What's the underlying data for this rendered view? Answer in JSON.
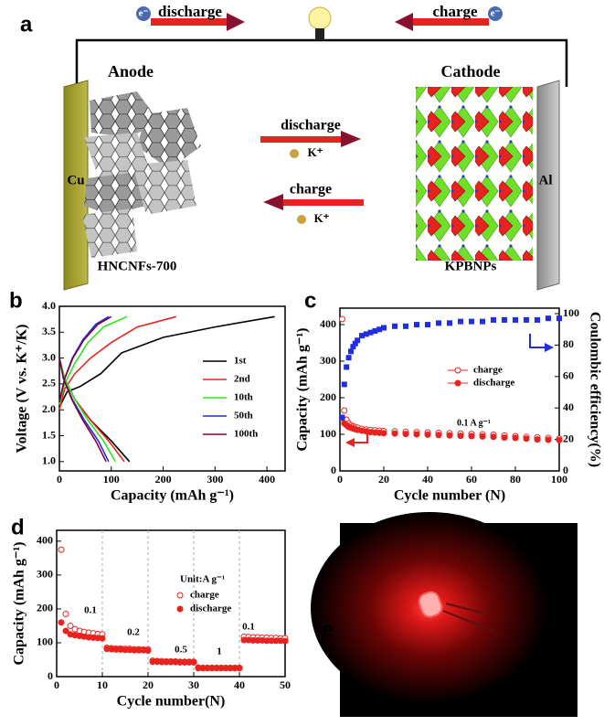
{
  "panel_labels": [
    "a",
    "b",
    "c",
    "d",
    "e"
  ],
  "diagram": {
    "top_discharge": "discharge",
    "top_charge": "charge",
    "electron": "e⁻",
    "anode": "Anode",
    "cathode": "Cathode",
    "anode_collector": "Cu",
    "cathode_collector": "Al",
    "anode_material": "HNCNFs-700",
    "cathode_material": "KPBNPs",
    "middle_discharge": "discharge",
    "middle_charge": "charge",
    "ion": "K⁺"
  },
  "chart_data": [
    {
      "type": "line",
      "xlabel": "Capacity (mAh g⁻¹)",
      "ylabel": "Voltage (V vs. K⁺/K)",
      "xlim": [
        0,
        435
      ],
      "ylim": [
        0.82,
        4.0
      ],
      "xticks": [
        0,
        100,
        200,
        300,
        400
      ],
      "yticks": [
        {
          "value": 1,
          "label": "1.0"
        },
        1.5,
        {
          "value": 2,
          "label": "2.0"
        },
        2.5,
        {
          "value": 3,
          "label": "3.0"
        },
        3.5,
        {
          "value": 4,
          "label": "4.0"
        }
      ],
      "series": [
        {
          "name": "1st",
          "color": "#000000",
          "x": [
            0,
            10,
            30,
            60,
            100,
            135,
            null,
            0,
            15,
            40,
            80,
            120,
            200,
            300,
            415
          ],
          "values": [
            3.0,
            2.6,
            2.2,
            1.8,
            1.4,
            1.0,
            null,
            2.05,
            2.35,
            2.45,
            2.7,
            3.1,
            3.4,
            3.6,
            3.8
          ]
        },
        {
          "name": "2nd",
          "color": "#e8231f",
          "x": [
            0,
            10,
            30,
            60,
            95,
            125,
            null,
            0,
            10,
            30,
            60,
            100,
            150,
            225
          ],
          "values": [
            3.0,
            2.6,
            2.2,
            1.8,
            1.4,
            1.0,
            null,
            2.0,
            2.4,
            2.7,
            3.0,
            3.3,
            3.6,
            3.8
          ]
        },
        {
          "name": "10th",
          "color": "#2ee61a",
          "x": [
            0,
            10,
            30,
            55,
            85,
            108,
            null,
            0,
            10,
            30,
            55,
            85,
            130
          ],
          "values": [
            3.0,
            2.6,
            2.2,
            1.8,
            1.4,
            1.0,
            null,
            2.1,
            2.5,
            2.9,
            3.3,
            3.6,
            3.8
          ]
        },
        {
          "name": "50th",
          "color": "#1f2ee0",
          "x": [
            0,
            8,
            25,
            48,
            75,
            95,
            null,
            0,
            10,
            25,
            45,
            70,
            95
          ],
          "values": [
            3.0,
            2.6,
            2.2,
            1.8,
            1.4,
            1.0,
            null,
            2.15,
            2.6,
            3.0,
            3.35,
            3.65,
            3.8
          ]
        },
        {
          "name": "100th",
          "color": "#800040",
          "x": [
            0,
            8,
            24,
            45,
            70,
            90,
            null,
            0,
            10,
            26,
            47,
            74,
            100
          ],
          "values": [
            3.0,
            2.6,
            2.2,
            1.8,
            1.4,
            1.0,
            null,
            2.15,
            2.6,
            3.0,
            3.35,
            3.65,
            3.8
          ]
        }
      ]
    },
    {
      "type": "scatter",
      "xlabel": "Cycle number (N)",
      "ylabel": "Capacity (mAh g⁻¹)",
      "y2label": "Coulombic efficiency(%)",
      "annotations": [
        "0.1 A g⁻¹"
      ],
      "xlim": [
        0,
        100
      ],
      "ylim": [
        0,
        445
      ],
      "y2lim": [
        0,
        103.5
      ],
      "xticks": [
        0,
        20,
        40,
        60,
        80,
        100
      ],
      "yticks": [
        0,
        100,
        200,
        300,
        400
      ],
      "y2ticks": [
        0,
        20,
        40,
        60,
        80,
        100
      ],
      "x": [
        1,
        2,
        3,
        4,
        5,
        6,
        7,
        8,
        10,
        12,
        14,
        16,
        18,
        20,
        25,
        30,
        35,
        40,
        45,
        50,
        55,
        60,
        65,
        70,
        75,
        80,
        85,
        90,
        95,
        100
      ],
      "series": [
        {
          "name": "charge",
          "color": "#e8231f",
          "marker": "open-circle",
          "values": [
            415,
            165,
            140,
            130,
            125,
            122,
            120,
            118,
            115,
            113,
            112,
            111,
            110,
            109,
            108,
            107,
            106,
            105,
            104,
            103,
            102,
            101,
            100,
            99,
            97,
            95,
            93,
            92,
            90,
            88
          ]
        },
        {
          "name": "discharge",
          "color": "#e8231f",
          "marker": "filled-circle",
          "values": [
            145,
            130,
            125,
            120,
            118,
            116,
            114,
            112,
            110,
            108,
            106,
            105,
            104,
            103,
            102,
            101,
            100,
            99,
            98,
            97,
            96,
            95,
            94,
            93,
            91,
            90,
            88,
            86,
            85,
            84
          ]
        },
        {
          "name": "Coulombic efficiency",
          "color": "#1f2ee0",
          "marker": "square",
          "axis": "y2",
          "values": [
            34,
            55,
            66,
            72,
            76,
            79,
            81,
            83,
            86,
            87,
            88,
            89,
            90,
            91,
            92,
            92,
            93,
            93,
            94,
            94,
            95,
            95,
            95,
            96,
            96,
            96,
            96,
            96,
            97,
            97
          ]
        }
      ]
    },
    {
      "type": "scatter",
      "xlabel": "Cycle number(N)",
      "ylabel": "Capacity (mAh g⁻¹)",
      "legend_title": "Unit:A g⁻¹",
      "annotations": [
        "0.1",
        "0.2",
        "0.5",
        "1",
        "0.1"
      ],
      "dividers": [
        10,
        20,
        30,
        40
      ],
      "xlim": [
        0,
        50
      ],
      "ylim": [
        0,
        432
      ],
      "xticks": [
        0,
        10,
        20,
        30,
        40,
        50
      ],
      "yticks": [
        0,
        100,
        200,
        300,
        400
      ],
      "x": [
        1,
        2,
        3,
        4,
        5,
        6,
        7,
        8,
        9,
        10,
        11,
        12,
        13,
        14,
        15,
        16,
        17,
        18,
        19,
        20,
        21,
        22,
        23,
        24,
        25,
        26,
        27,
        28,
        29,
        30,
        31,
        32,
        33,
        34,
        35,
        36,
        37,
        38,
        39,
        40,
        41,
        42,
        43,
        44,
        45,
        46,
        47,
        48,
        49,
        50
      ],
      "series": [
        {
          "name": "charge",
          "color": "#e8231f",
          "marker": "open-circle",
          "values": [
            375,
            185,
            150,
            140,
            135,
            132,
            130,
            128,
            126,
            125,
            85,
            84,
            83,
            83,
            82,
            82,
            81,
            81,
            80,
            80,
            47,
            46,
            46,
            45,
            45,
            45,
            44,
            44,
            44,
            44,
            27,
            26,
            26,
            26,
            26,
            26,
            26,
            26,
            26,
            26,
            118,
            117,
            116,
            116,
            115,
            115,
            114,
            114,
            113,
            113
          ]
        },
        {
          "name": "discharge",
          "color": "#e8231f",
          "marker": "filled-circle",
          "values": [
            160,
            135,
            125,
            122,
            120,
            118,
            116,
            115,
            114,
            113,
            82,
            81,
            80,
            80,
            79,
            79,
            78,
            78,
            78,
            77,
            44,
            44,
            43,
            43,
            43,
            43,
            42,
            42,
            42,
            42,
            25,
            25,
            25,
            25,
            25,
            25,
            25,
            25,
            25,
            25,
            108,
            108,
            107,
            107,
            107,
            106,
            106,
            106,
            106,
            105
          ]
        }
      ]
    }
  ]
}
